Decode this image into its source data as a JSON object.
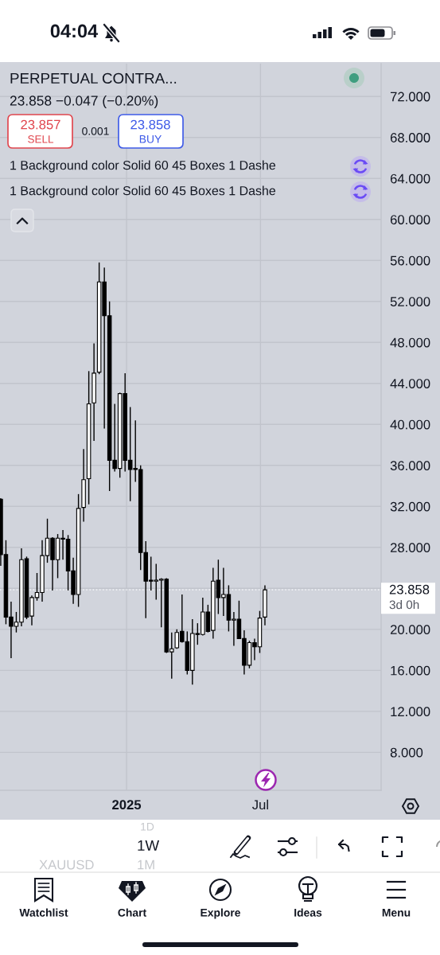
{
  "chart_data": {
    "type": "candlestick",
    "title": "PERPETUAL CONTRA...",
    "subtitle": "23.858 −0.047 (−0.20%)",
    "x": [
      "2024-07-15",
      "2024-07-22",
      "2024-07-29",
      "2024-08-05",
      "2024-08-12",
      "2024-08-19",
      "2024-08-26",
      "2024-09-02",
      "2024-09-09",
      "2024-09-16",
      "2024-09-23",
      "2024-09-30",
      "2024-10-07",
      "2024-10-14",
      "2024-10-21",
      "2024-10-28",
      "2024-11-04",
      "2024-11-11",
      "2024-11-18",
      "2024-11-25",
      "2024-12-02",
      "2024-12-09",
      "2024-12-16",
      "2024-12-23",
      "2024-12-30",
      "2025-01-06",
      "2025-01-13",
      "2025-01-20",
      "2025-01-27",
      "2025-02-03",
      "2025-02-10",
      "2025-02-17",
      "2025-02-24",
      "2025-03-03",
      "2025-03-10",
      "2025-03-17",
      "2025-03-24",
      "2025-03-31",
      "2025-04-07",
      "2025-04-14",
      "2025-04-21",
      "2025-04-28",
      "2025-05-05",
      "2025-05-12",
      "2025-05-19",
      "2025-05-26",
      "2025-06-02",
      "2025-06-09",
      "2025-06-16",
      "2025-06-23",
      "2025-06-30",
      "2025-07-07"
    ],
    "ohlc": [
      [
        32.7,
        32.8,
        26.2,
        27.3
      ],
      [
        27.3,
        28.7,
        20.5,
        21.2
      ],
      [
        21.2,
        22.7,
        17.2,
        20.3
      ],
      [
        20.3,
        21.7,
        19.7,
        20.7
      ],
      [
        20.7,
        27.9,
        20.3,
        26.8
      ],
      [
        26.9,
        27.1,
        21.0,
        21.2
      ],
      [
        21.3,
        23.3,
        20.4,
        23.1
      ],
      [
        23.1,
        25.5,
        22.8,
        23.6
      ],
      [
        23.6,
        28.7,
        22.7,
        27.2
      ],
      [
        27.2,
        30.8,
        26.5,
        28.9
      ],
      [
        28.9,
        29.0,
        23.8,
        26.8
      ],
      [
        26.8,
        29.3,
        25.0,
        28.9
      ],
      [
        28.9,
        29.7,
        26.8,
        28.8
      ],
      [
        28.8,
        29.2,
        23.8,
        25.7
      ],
      [
        25.7,
        27.0,
        22.5,
        23.4
      ],
      [
        23.4,
        33.2,
        22.2,
        31.8
      ],
      [
        31.9,
        37.6,
        30.5,
        34.6
      ],
      [
        34.7,
        45.2,
        32.2,
        42.0
      ],
      [
        42.1,
        47.9,
        38.4,
        45.0
      ],
      [
        45.1,
        55.8,
        44.9,
        53.9
      ],
      [
        53.9,
        55.3,
        39.6,
        50.6
      ],
      [
        50.6,
        52.0,
        33.5,
        36.5
      ],
      [
        36.5,
        42.0,
        35.4,
        35.7
      ],
      [
        35.7,
        43.1,
        34.8,
        43.0
      ],
      [
        43.0,
        45.0,
        35.4,
        36.5
      ],
      [
        36.5,
        41.7,
        32.5,
        35.6
      ],
      [
        35.7,
        40.4,
        34.4,
        35.6
      ],
      [
        35.6,
        36.0,
        25.8,
        27.5
      ],
      [
        27.5,
        28.6,
        21.1,
        24.7
      ],
      [
        24.8,
        27.1,
        23.8,
        24.7
      ],
      [
        24.7,
        26.4,
        22.9,
        24.8
      ],
      [
        24.8,
        25.0,
        20.2,
        24.9
      ],
      [
        24.9,
        25.0,
        17.7,
        17.8
      ],
      [
        17.8,
        19.7,
        15.2,
        18.1
      ],
      [
        18.2,
        20.0,
        18.1,
        19.7
      ],
      [
        19.8,
        23.4,
        18.7,
        18.8
      ],
      [
        18.8,
        19.8,
        15.6,
        16.0
      ],
      [
        16.0,
        21.0,
        14.6,
        19.6
      ],
      [
        19.6,
        20.6,
        18.5,
        19.5
      ],
      [
        19.5,
        23.1,
        19.4,
        21.7
      ],
      [
        21.7,
        22.4,
        19.7,
        19.8
      ],
      [
        19.9,
        26.0,
        19.1,
        24.7
      ],
      [
        24.8,
        26.8,
        21.5,
        23.1
      ],
      [
        23.1,
        26.0,
        21.3,
        23.4
      ],
      [
        23.4,
        24.3,
        19.8,
        20.9
      ],
      [
        20.9,
        21.7,
        18.4,
        21.0
      ],
      [
        21.0,
        22.8,
        19.1,
        19.1
      ],
      [
        19.1,
        19.9,
        15.6,
        16.5
      ],
      [
        16.5,
        18.9,
        16.2,
        18.7
      ],
      [
        18.7,
        19.1,
        17.0,
        18.3
      ],
      [
        18.3,
        21.8,
        17.7,
        21.1
      ],
      [
        21.2,
        24.3,
        20.4,
        23.858
      ]
    ],
    "colors": [
      "#000000",
      "#000000",
      "#000000",
      "#ffffff",
      "#ffffff",
      "#000000",
      "#ffffff",
      "#ffffff",
      "#ffffff",
      "#ffffff",
      "#000000",
      "#ffffff",
      "#000000",
      "#000000",
      "#000000",
      "#ffffff",
      "#ffffff",
      "#ffffff",
      "#ffffff",
      "#ffffff",
      "#000000",
      "#000000",
      "#000000",
      "#ffffff",
      "#000000",
      "#000000",
      "#000000",
      "#000000",
      "#000000",
      "#000000",
      "#ffffff",
      "#ffffff",
      "#000000",
      "#ffffff",
      "#ffffff",
      "#000000",
      "#000000",
      "#ffffff",
      "#000000",
      "#ffffff",
      "#000000",
      "#ffffff",
      "#000000",
      "#ffffff",
      "#000000",
      "#ffffff",
      "#000000",
      "#000000",
      "#ffffff",
      "#000000",
      "#ffffff",
      "#ffffff"
    ],
    "color": "#000000",
    "xlim": [
      "2024-07-14",
      "2025-12-11"
    ],
    "ylim": [
      4.3,
      75.2
    ],
    "xticks": [
      {
        "value": "2025-01-01",
        "label": "2025"
      },
      {
        "value": "2025-07-01",
        "label": "Jul"
      }
    ],
    "yticks": [
      {
        "value": 8,
        "label": "8.000"
      },
      {
        "value": 12,
        "label": "12.000"
      },
      {
        "value": 16,
        "label": "16.000"
      },
      {
        "value": 20,
        "label": "20.000"
      },
      {
        "value": 24,
        "label": null
      },
      {
        "value": 28,
        "label": "28.000"
      },
      {
        "value": 32,
        "label": "32.000"
      },
      {
        "value": 36,
        "label": "36.000"
      },
      {
        "value": 40,
        "label": "40.000"
      },
      {
        "value": 44,
        "label": "44.000"
      },
      {
        "value": 48,
        "label": "48.000"
      },
      {
        "value": 52,
        "label": "52.000"
      },
      {
        "value": 56,
        "label": "56.000"
      },
      {
        "value": 60,
        "label": "60.000"
      },
      {
        "value": 64,
        "label": "64.000"
      },
      {
        "value": 68,
        "label": "68.000"
      },
      {
        "value": 72,
        "label": "72.000"
      }
    ],
    "grid": true,
    "ref_lines": [
      {
        "axis": "y",
        "value": 23.858,
        "label": "23.858",
        "color": "#ffffff",
        "line_style": "dotted"
      }
    ],
    "annotations": [
      "04:04",
      "23.857",
      "SELL",
      "0.001",
      "23.858",
      "BUY",
      "1 Background color Solid 60 45 Boxes 1 Dashe",
      "1 Background color Solid 60 45 Boxes 1 Dashe",
      "3d 0h",
      "1D",
      "1W",
      "XAUUSD",
      "1M",
      "Watchlist",
      "Chart",
      "Explore",
      "Ideas",
      "Menu"
    ]
  }
}
